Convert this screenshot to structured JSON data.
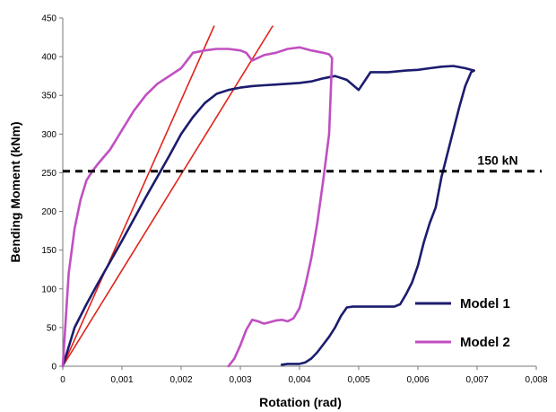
{
  "chart_data": {
    "type": "line",
    "title": "",
    "xlabel": "Rotation (rad)",
    "ylabel": "Bending Moment (kNm)",
    "xlim": [
      0,
      0.008
    ],
    "ylim": [
      0,
      450
    ],
    "x_ticks": [
      0,
      0.001,
      0.002,
      0.003,
      0.004,
      0.005,
      0.006,
      0.007,
      0.008
    ],
    "x_tick_labels": [
      "0",
      "0,001",
      "0,002",
      "0,003",
      "0,004",
      "0,005",
      "0,006",
      "0,007",
      "0,008"
    ],
    "y_ticks": [
      0,
      50,
      100,
      150,
      200,
      250,
      300,
      350,
      400,
      450
    ],
    "y_tick_labels": [
      "0",
      "50",
      "100",
      "150",
      "200",
      "250",
      "300",
      "350",
      "400",
      "450"
    ],
    "grid": false,
    "legend_position": "bottom-right",
    "series": [
      {
        "name": "Model 1",
        "color": "#1c1c6e",
        "x": [
          0,
          0.0002,
          0.0004,
          0.0006,
          0.0008,
          0.001,
          0.0012,
          0.0014,
          0.0016,
          0.0018,
          0.002,
          0.0022,
          0.0024,
          0.0026,
          0.0028,
          0.003,
          0.0032,
          0.0034,
          0.0036,
          0.0038,
          0.004,
          0.0042,
          0.0044,
          0.0046,
          0.0048,
          0.005,
          0.0052,
          0.0055,
          0.0058,
          0.006,
          0.0062,
          0.0064,
          0.0066,
          0.0068,
          0.0069,
          0.00695,
          0.0069,
          0.0068,
          0.0067,
          0.0066,
          0.0065,
          0.0064,
          0.0063,
          0.0062,
          0.0061,
          0.006,
          0.0059,
          0.0058,
          0.0057,
          0.0056,
          0.0055,
          0.0054,
          0.0053,
          0.0052,
          0.0051,
          0.005,
          0.0049,
          0.0048,
          0.0047,
          0.0046,
          0.0045,
          0.0044,
          0.0043,
          0.0042,
          0.0041,
          0.004,
          0.0039,
          0.0038,
          0.0037
        ],
        "y": [
          0,
          50,
          80,
          108,
          135,
          162,
          190,
          218,
          245,
          272,
          300,
          322,
          340,
          352,
          357,
          360,
          362,
          363,
          364,
          365,
          366,
          368,
          372,
          375,
          370,
          357,
          380,
          380,
          382,
          383,
          385,
          387,
          388,
          385,
          383,
          382,
          380,
          362,
          335,
          305,
          275,
          245,
          205,
          185,
          160,
          130,
          108,
          93,
          80,
          77,
          77,
          77,
          77,
          77,
          77,
          77,
          77,
          76,
          65,
          50,
          38,
          28,
          18,
          10,
          5,
          3,
          3,
          3,
          2
        ]
      },
      {
        "name": "Model 2",
        "color": "#c04fc2",
        "x": [
          0,
          0.0001,
          0.0002,
          0.0003,
          0.0004,
          0.0005,
          0.0006,
          0.0008,
          0.001,
          0.0012,
          0.0014,
          0.0016,
          0.0018,
          0.002,
          0.0021,
          0.0022,
          0.0024,
          0.0026,
          0.0028,
          0.003,
          0.0031,
          0.0032,
          0.0034,
          0.0036,
          0.0038,
          0.004,
          0.0042,
          0.0044,
          0.0045,
          0.00455,
          0.0045,
          0.0044,
          0.0043,
          0.0042,
          0.0041,
          0.004,
          0.0039,
          0.0038,
          0.0037,
          0.0036,
          0.0035,
          0.0034,
          0.0033,
          0.0032,
          0.0031,
          0.003,
          0.0029,
          0.0028
        ],
        "y": [
          0,
          120,
          178,
          215,
          240,
          252,
          262,
          280,
          305,
          330,
          350,
          365,
          375,
          385,
          395,
          405,
          408,
          410,
          410,
          408,
          405,
          395,
          402,
          405,
          410,
          412,
          408,
          405,
          403,
          398,
          300,
          240,
          185,
          140,
          105,
          75,
          62,
          58,
          60,
          59,
          57,
          55,
          58,
          60,
          47,
          27,
          10,
          0
        ]
      }
    ],
    "reference_lines": [
      {
        "type": "secant",
        "color": "#e0241b",
        "x": [
          0,
          0.00256
        ],
        "y": [
          0,
          440
        ]
      },
      {
        "type": "secant",
        "color": "#e0241b",
        "x": [
          0,
          0.00355
        ],
        "y": [
          0,
          440
        ]
      }
    ],
    "horizontal_line": {
      "y": 252,
      "style": "dashed",
      "color": "#000000",
      "label": "150 kN"
    }
  }
}
